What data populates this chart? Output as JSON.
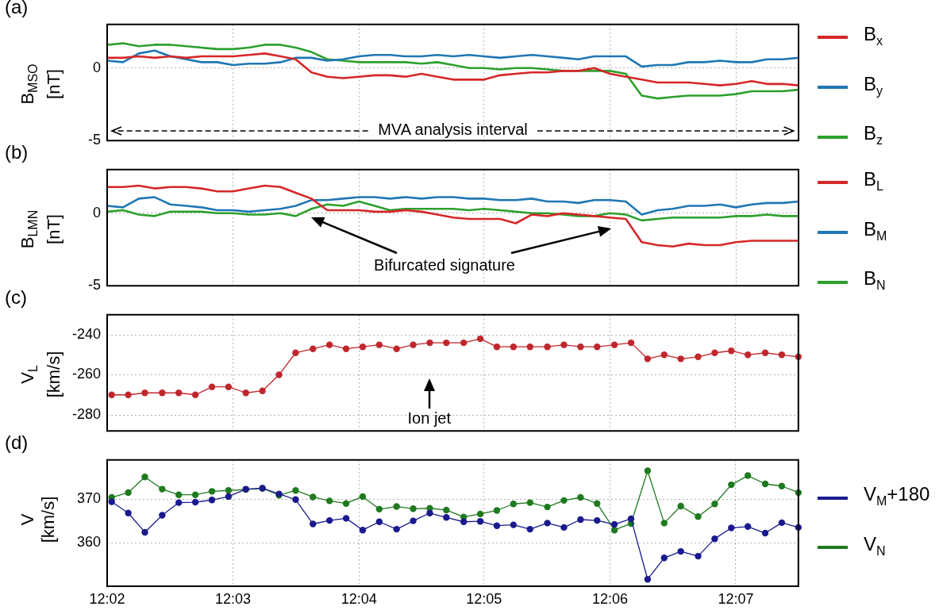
{
  "chart_data": [
    {
      "type": "line",
      "title": "(a)",
      "ylabel": "B$_{MSO}$ [nT]",
      "legend": "right",
      "grid": true,
      "marker": "none",
      "tick_labels": "y",
      "x": [
        12.0333,
        12.0354,
        12.0375,
        12.0396,
        12.0417,
        12.0438,
        12.0458,
        12.0479,
        12.05,
        12.0521,
        12.0542,
        12.0563,
        12.0583,
        12.0604,
        12.0625,
        12.0646,
        12.0667,
        12.0688,
        12.0708,
        12.0729,
        12.075,
        12.0771,
        12.0792,
        12.0813,
        12.0833,
        12.0854,
        12.0875,
        12.0896,
        12.0917,
        12.0938,
        12.0958,
        12.0979,
        12.1,
        12.1021,
        12.1042,
        12.1063,
        12.1083,
        12.1104,
        12.1125,
        12.1146,
        12.1167,
        12.1188,
        12.1208,
        12.1229,
        12.125
      ],
      "xlim": [
        12.0333,
        12.125
      ],
      "xticks": [
        {
          "value": 12.0333,
          "label": null
        },
        {
          "value": 12.05,
          "label": null
        },
        {
          "value": 12.0667,
          "label": null
        },
        {
          "value": 12.0833,
          "label": null
        },
        {
          "value": 12.1,
          "label": null
        },
        {
          "value": 12.1167,
          "label": null
        }
      ],
      "ylim": [
        -5,
        3
      ],
      "yticks": [
        -5,
        0
      ],
      "series": [
        {
          "name": "B$_{x}$",
          "color": "#d62728",
          "values": [
            0.7,
            0.7,
            0.8,
            0.7,
            0.8,
            0.7,
            0.8,
            0.8,
            0.8,
            0.9,
            1.0,
            0.8,
            0.6,
            -0.3,
            -0.6,
            -0.7,
            -0.6,
            -0.5,
            -0.5,
            -0.6,
            -0.4,
            -0.6,
            -0.8,
            -0.8,
            -0.8,
            -0.5,
            -0.4,
            -0.3,
            -0.3,
            -0.2,
            -0.2,
            0.0,
            -0.4,
            -0.6,
            -0.8,
            -1.0,
            -1.0,
            -1.0,
            -1.1,
            -1.2,
            -1.1,
            -0.9,
            -1.1,
            -1.1,
            -1.2
          ]
        },
        {
          "name": "B$_{y}$",
          "color": "#1f77b4",
          "values": [
            0.5,
            0.4,
            1.0,
            1.2,
            0.8,
            0.6,
            0.4,
            0.4,
            0.2,
            0.3,
            0.3,
            0.4,
            0.7,
            0.7,
            0.5,
            0.6,
            0.8,
            0.9,
            0.9,
            0.8,
            0.8,
            0.9,
            0.8,
            0.9,
            0.8,
            0.7,
            0.8,
            0.9,
            0.8,
            0.7,
            0.6,
            0.8,
            0.8,
            0.8,
            0.1,
            0.2,
            0.2,
            0.4,
            0.4,
            0.5,
            0.4,
            0.4,
            0.6,
            0.6,
            0.7
          ]
        },
        {
          "name": "B$_{z}$",
          "color": "#2ca02c",
          "values": [
            1.6,
            1.7,
            1.5,
            1.6,
            1.6,
            1.5,
            1.4,
            1.3,
            1.3,
            1.4,
            1.6,
            1.6,
            1.4,
            1.1,
            0.6,
            0.5,
            0.4,
            0.4,
            0.4,
            0.4,
            0.3,
            0.4,
            0.2,
            0.0,
            0.0,
            -0.1,
            0.0,
            0.0,
            -0.1,
            -0.2,
            -0.2,
            -0.2,
            -0.2,
            -0.4,
            -1.9,
            -2.1,
            -2.0,
            -1.9,
            -1.9,
            -1.9,
            -1.8,
            -1.6,
            -1.6,
            -1.6,
            -1.5
          ]
        }
      ],
      "annotations": [
        "MVA analysis interval"
      ]
    },
    {
      "type": "line",
      "title": "(b)",
      "ylabel": "B$_{LMN}$ [nT]",
      "legend": "right",
      "grid": true,
      "marker": "none",
      "tick_labels": "y",
      "x": [
        12.0333,
        12.0354,
        12.0375,
        12.0396,
        12.0417,
        12.0438,
        12.0458,
        12.0479,
        12.05,
        12.0521,
        12.0542,
        12.0563,
        12.0583,
        12.0604,
        12.0625,
        12.0646,
        12.0667,
        12.0688,
        12.0708,
        12.0729,
        12.075,
        12.0771,
        12.0792,
        12.0813,
        12.0833,
        12.0854,
        12.0875,
        12.0896,
        12.0917,
        12.0938,
        12.0958,
        12.0979,
        12.1,
        12.1021,
        12.1042,
        12.1063,
        12.1083,
        12.1104,
        12.1125,
        12.1146,
        12.1167,
        12.1188,
        12.1208,
        12.1229,
        12.125
      ],
      "xlim": [
        12.0333,
        12.125
      ],
      "xticks": [
        {
          "value": 12.0333,
          "label": null
        },
        {
          "value": 12.05,
          "label": null
        },
        {
          "value": 12.0667,
          "label": null
        },
        {
          "value": 12.0833,
          "label": null
        },
        {
          "value": 12.1,
          "label": null
        },
        {
          "value": 12.1167,
          "label": null
        }
      ],
      "ylim": [
        -5,
        3
      ],
      "yticks": [
        -5,
        0
      ],
      "series": [
        {
          "name": "B$_{L}$",
          "color": "#d62728",
          "values": [
            1.8,
            1.8,
            1.9,
            1.7,
            1.8,
            1.8,
            1.7,
            1.5,
            1.5,
            1.7,
            1.9,
            1.8,
            1.4,
            1.0,
            0.2,
            0.2,
            0.2,
            0.1,
            0.1,
            0.2,
            0.1,
            -0.1,
            -0.3,
            -0.4,
            -0.4,
            -0.4,
            -0.7,
            -0.1,
            -0.2,
            0.0,
            -0.1,
            -0.2,
            -0.3,
            -0.4,
            -2.0,
            -2.2,
            -2.3,
            -2.1,
            -2.2,
            -2.2,
            -2.0,
            -1.9,
            -1.9,
            -1.9,
            -1.9
          ]
        },
        {
          "name": "B$_{M}$",
          "color": "#1f77b4",
          "values": [
            0.5,
            0.4,
            1.0,
            1.1,
            0.6,
            0.5,
            0.4,
            0.2,
            0.2,
            0.1,
            0.2,
            0.3,
            0.5,
            0.9,
            0.9,
            1.0,
            1.1,
            1.1,
            1.0,
            1.1,
            1.0,
            1.1,
            1.1,
            1.0,
            1.0,
            0.9,
            0.9,
            1.0,
            0.8,
            0.8,
            0.7,
            0.9,
            0.9,
            0.8,
            -0.1,
            0.2,
            0.3,
            0.5,
            0.5,
            0.6,
            0.4,
            0.6,
            0.7,
            0.7,
            0.8
          ]
        },
        {
          "name": "B$_{N}$",
          "color": "#2ca02c",
          "values": [
            0.1,
            0.2,
            -0.1,
            -0.2,
            0.1,
            0.1,
            0.1,
            0.0,
            0.0,
            -0.1,
            -0.1,
            0.0,
            -0.2,
            0.3,
            0.6,
            0.5,
            0.8,
            0.5,
            0.2,
            0.3,
            0.3,
            0.3,
            0.3,
            0.2,
            0.3,
            0.2,
            0.1,
            0.0,
            0.0,
            -0.1,
            -0.2,
            -0.2,
            0.0,
            -0.1,
            -0.5,
            -0.4,
            -0.3,
            -0.3,
            -0.3,
            -0.3,
            -0.2,
            -0.2,
            -0.1,
            -0.2,
            -0.2
          ]
        }
      ],
      "annotations": [
        "Bifurcated signature"
      ]
    },
    {
      "type": "line",
      "title": "(c)",
      "ylabel": "V$_{L}$ [km/s]",
      "grid": true,
      "marker": "circle",
      "tick_labels": "y",
      "x": [
        12.0339,
        12.0361,
        12.0383,
        12.0406,
        12.0428,
        12.045,
        12.0472,
        12.0494,
        12.0517,
        12.0539,
        12.0561,
        12.0583,
        12.0606,
        12.0628,
        12.065,
        12.0672,
        12.0694,
        12.0717,
        12.0739,
        12.0761,
        12.0783,
        12.0806,
        12.0828,
        12.085,
        12.0872,
        12.0894,
        12.0917,
        12.0939,
        12.0961,
        12.0983,
        12.1006,
        12.1028,
        12.105,
        12.1072,
        12.1094,
        12.1117,
        12.1139,
        12.1161,
        12.1183,
        12.1206,
        12.1228,
        12.125
      ],
      "xlim": [
        12.0333,
        12.125
      ],
      "xticks": [
        {
          "value": 12.0333,
          "label": null
        },
        {
          "value": 12.05,
          "label": null
        },
        {
          "value": 12.0667,
          "label": null
        },
        {
          "value": 12.0833,
          "label": null
        },
        {
          "value": 12.1,
          "label": null
        },
        {
          "value": 12.1167,
          "label": null
        }
      ],
      "ylim": [
        -288,
        -230
      ],
      "yticks": [
        -280,
        -260,
        -240
      ],
      "series": [
        {
          "color": "#c0272d",
          "values": [
            -270,
            -270,
            -269,
            -269,
            -269,
            -270,
            -266,
            -266,
            -269,
            -268,
            -260,
            -249,
            -247,
            -245,
            -247,
            -246,
            -245,
            -247,
            -245,
            -244,
            -244,
            -244,
            -242,
            -246,
            -246,
            -246,
            -246,
            -245,
            -246,
            -246,
            -245,
            -244,
            -252,
            -250,
            -252,
            -251,
            -249,
            -248,
            -250,
            -249,
            -250,
            -251
          ]
        }
      ],
      "annotations": [
        "Ion jet"
      ]
    },
    {
      "type": "line",
      "title": "(d)",
      "ylabel": "V [km/s]",
      "legend": "right",
      "grid": true,
      "marker": "circle",
      "x": [
        12.0339,
        12.0361,
        12.0383,
        12.0406,
        12.0428,
        12.045,
        12.0472,
        12.0494,
        12.0517,
        12.0539,
        12.0561,
        12.0583,
        12.0606,
        12.0628,
        12.065,
        12.0672,
        12.0694,
        12.0717,
        12.0739,
        12.0761,
        12.0783,
        12.0806,
        12.0828,
        12.085,
        12.0872,
        12.0894,
        12.0917,
        12.0939,
        12.0961,
        12.0983,
        12.1006,
        12.1028,
        12.105,
        12.1072,
        12.1094,
        12.1117,
        12.1139,
        12.1161,
        12.1183,
        12.1206,
        12.1228,
        12.125
      ],
      "xlim": [
        12.0333,
        12.125
      ],
      "xticks": [
        {
          "value": 12.0333,
          "label": "12:02"
        },
        {
          "value": 12.05,
          "label": "12:03"
        },
        {
          "value": 12.0667,
          "label": "12:04"
        },
        {
          "value": 12.0833,
          "label": "12:05"
        },
        {
          "value": 12.1,
          "label": "12:06"
        },
        {
          "value": 12.1167,
          "label": "12:07"
        }
      ],
      "ylim": [
        350,
        379
      ],
      "yticks": [
        360,
        370
      ],
      "series": [
        {
          "name": "V$_{M}$+180",
          "color": "#1a1a8e",
          "values": [
            369.4,
            366.8,
            362.4,
            366.3,
            369.2,
            369.3,
            369.8,
            370.6,
            372.3,
            372.5,
            371.2,
            369.9,
            364.3,
            365.1,
            365.6,
            362.9,
            364.8,
            363.1,
            365,
            366.8,
            365.8,
            364.8,
            364.9,
            363.9,
            364.1,
            363.1,
            364.5,
            363.5,
            365.3,
            365.1,
            364.2,
            365.5,
            351.6,
            356.5,
            358,
            356.9,
            360.9,
            363.4,
            363.7,
            362.2,
            364.6,
            363.5
          ]
        },
        {
          "name": "V$_{N}$",
          "color": "#1f7a1f",
          "values": [
            370.4,
            371.5,
            375.1,
            372.3,
            371,
            371,
            371.8,
            372,
            372.2,
            372.5,
            370.9,
            372,
            370.5,
            369.6,
            369,
            370.6,
            367.7,
            368.3,
            367.8,
            367.9,
            367.5,
            365.9,
            366.6,
            367.4,
            368.9,
            369.2,
            368.2,
            369.7,
            370.4,
            369,
            362.9,
            364.4,
            376.5,
            364.5,
            368.4,
            366,
            368.9,
            373.3,
            375.4,
            373.5,
            373,
            371.5
          ]
        }
      ]
    }
  ]
}
